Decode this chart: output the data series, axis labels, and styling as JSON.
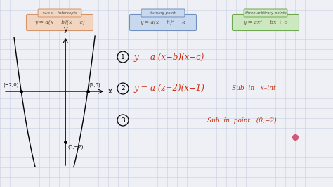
{
  "background_color": "#eef0f5",
  "grid_color": "#c5cfe0",
  "box1_label": "two x – intercepts",
  "box1_formula": "y = a(x − b)(x − c)",
  "box1_bg": "#f2d5c0",
  "box1_border": "#d4956a",
  "box1_label_bg": "#f2d5c0",
  "box2_label": "turning point",
  "box2_formula": "y = a(x − h)² + k",
  "box2_bg": "#c8d8ee",
  "box2_border": "#7090c0",
  "box2_label_bg": "#c8d8ee",
  "box3_label": "three arbitrary points",
  "box3_formula": "y = ax² + bx + c",
  "box3_bg": "#cce8c0",
  "box3_border": "#70a850",
  "box3_label_bg": "#cce8c0",
  "step1_text": "y = a (x−b)(x−c)",
  "step2_text": "y = a (z+2)(x−1)",
  "step2_sub": "Sub  in   x–int",
  "step3_sub": "Sub  in  point   (0,−2)",
  "handwriting_color": "#c83010",
  "dot_color": "#d05878",
  "figw": 4.74,
  "figh": 2.66,
  "dpi": 100
}
